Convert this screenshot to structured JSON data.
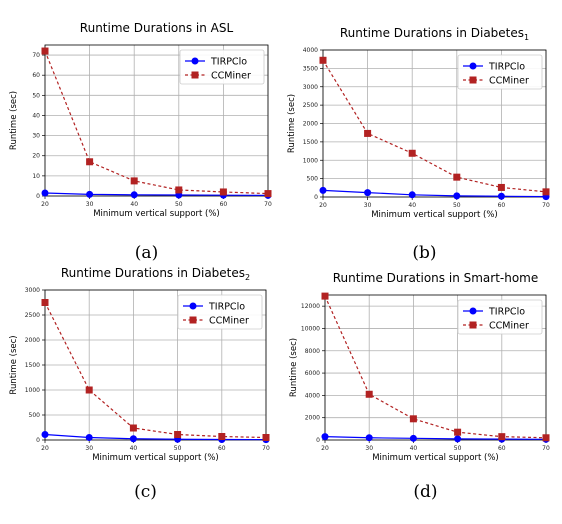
{
  "chart_data": [
    {
      "type": "line",
      "title": "Runtime Durations in ASL",
      "title_sub": "",
      "xlabel": "Minimum vertical support (%)",
      "ylabel": "Runtime (sec)",
      "x": [
        20,
        30,
        40,
        50,
        60,
        70
      ],
      "x_ticks": [
        20,
        30,
        40,
        50,
        60,
        70
      ],
      "xlim": [
        20,
        70
      ],
      "ylim": [
        0,
        75
      ],
      "y_ticks": [
        0,
        10,
        20,
        30,
        40,
        50,
        60,
        70
      ],
      "grid": true,
      "legend_position": "top-right",
      "caption": "(a)",
      "series": [
        {
          "name": "TIRPClo",
          "color": "#0000ff",
          "marker": "circle",
          "values": [
            1.5,
            0.8,
            0.6,
            0.5,
            0.4,
            0.3
          ]
        },
        {
          "name": "CCMiner",
          "color": "#b22222",
          "marker": "square",
          "values": [
            72,
            17,
            7.5,
            3,
            2,
            1.2
          ]
        }
      ]
    },
    {
      "type": "line",
      "title": "Runtime Durations in Diabetes",
      "title_sub": "1",
      "xlabel": "Minimum vertical support (%)",
      "ylabel": "Runtime (sec)",
      "x": [
        20,
        30,
        40,
        50,
        60,
        70
      ],
      "x_ticks": [
        20,
        30,
        40,
        50,
        60,
        70
      ],
      "xlim": [
        20,
        70
      ],
      "ylim": [
        0,
        4000
      ],
      "y_ticks": [
        0,
        500,
        1000,
        1500,
        2000,
        2500,
        3000,
        3500,
        4000
      ],
      "grid": true,
      "legend_position": "top-right",
      "caption": "(b)",
      "series": [
        {
          "name": "TIRPClo",
          "color": "#0000ff",
          "marker": "circle",
          "values": [
            180,
            120,
            60,
            30,
            20,
            10
          ]
        },
        {
          "name": "CCMiner",
          "color": "#b22222",
          "marker": "square",
          "values": [
            3720,
            1730,
            1190,
            540,
            260,
            140
          ]
        }
      ]
    },
    {
      "type": "line",
      "title": "Runtime Durations in Diabetes",
      "title_sub": "2",
      "xlabel": "Minimum vertical support (%)",
      "ylabel": "Runtime (sec)",
      "x": [
        20,
        30,
        40,
        50,
        60,
        70
      ],
      "x_ticks": [
        20,
        30,
        40,
        50,
        60,
        70
      ],
      "xlim": [
        20,
        70
      ],
      "ylim": [
        0,
        3000
      ],
      "y_ticks": [
        0,
        500,
        1000,
        1500,
        2000,
        2500,
        3000
      ],
      "grid": true,
      "legend_position": "top-right",
      "caption": "(c)",
      "series": [
        {
          "name": "TIRPClo",
          "color": "#0000ff",
          "marker": "circle",
          "values": [
            110,
            50,
            25,
            15,
            10,
            8
          ]
        },
        {
          "name": "CCMiner",
          "color": "#b22222",
          "marker": "square",
          "values": [
            2750,
            1000,
            240,
            110,
            70,
            50
          ]
        }
      ]
    },
    {
      "type": "line",
      "title": "Runtime Durations in Smart-home",
      "title_sub": "",
      "xlabel": "Minimum vertical support (%)",
      "ylabel": "Runtime (sec)",
      "x": [
        20,
        30,
        40,
        50,
        60,
        70
      ],
      "x_ticks": [
        20,
        30,
        40,
        50,
        60,
        70
      ],
      "xlim": [
        20,
        70
      ],
      "ylim": [
        0,
        13000
      ],
      "y_ticks": [
        0,
        2000,
        4000,
        6000,
        8000,
        10000,
        12000
      ],
      "grid": true,
      "legend_position": "top-right",
      "caption": "(d)",
      "series": [
        {
          "name": "TIRPClo",
          "color": "#0000ff",
          "marker": "circle",
          "values": [
            300,
            200,
            150,
            100,
            80,
            60
          ]
        },
        {
          "name": "CCMiner",
          "color": "#b22222",
          "marker": "square",
          "values": [
            12900,
            4100,
            1900,
            700,
            300,
            200
          ]
        }
      ]
    }
  ]
}
